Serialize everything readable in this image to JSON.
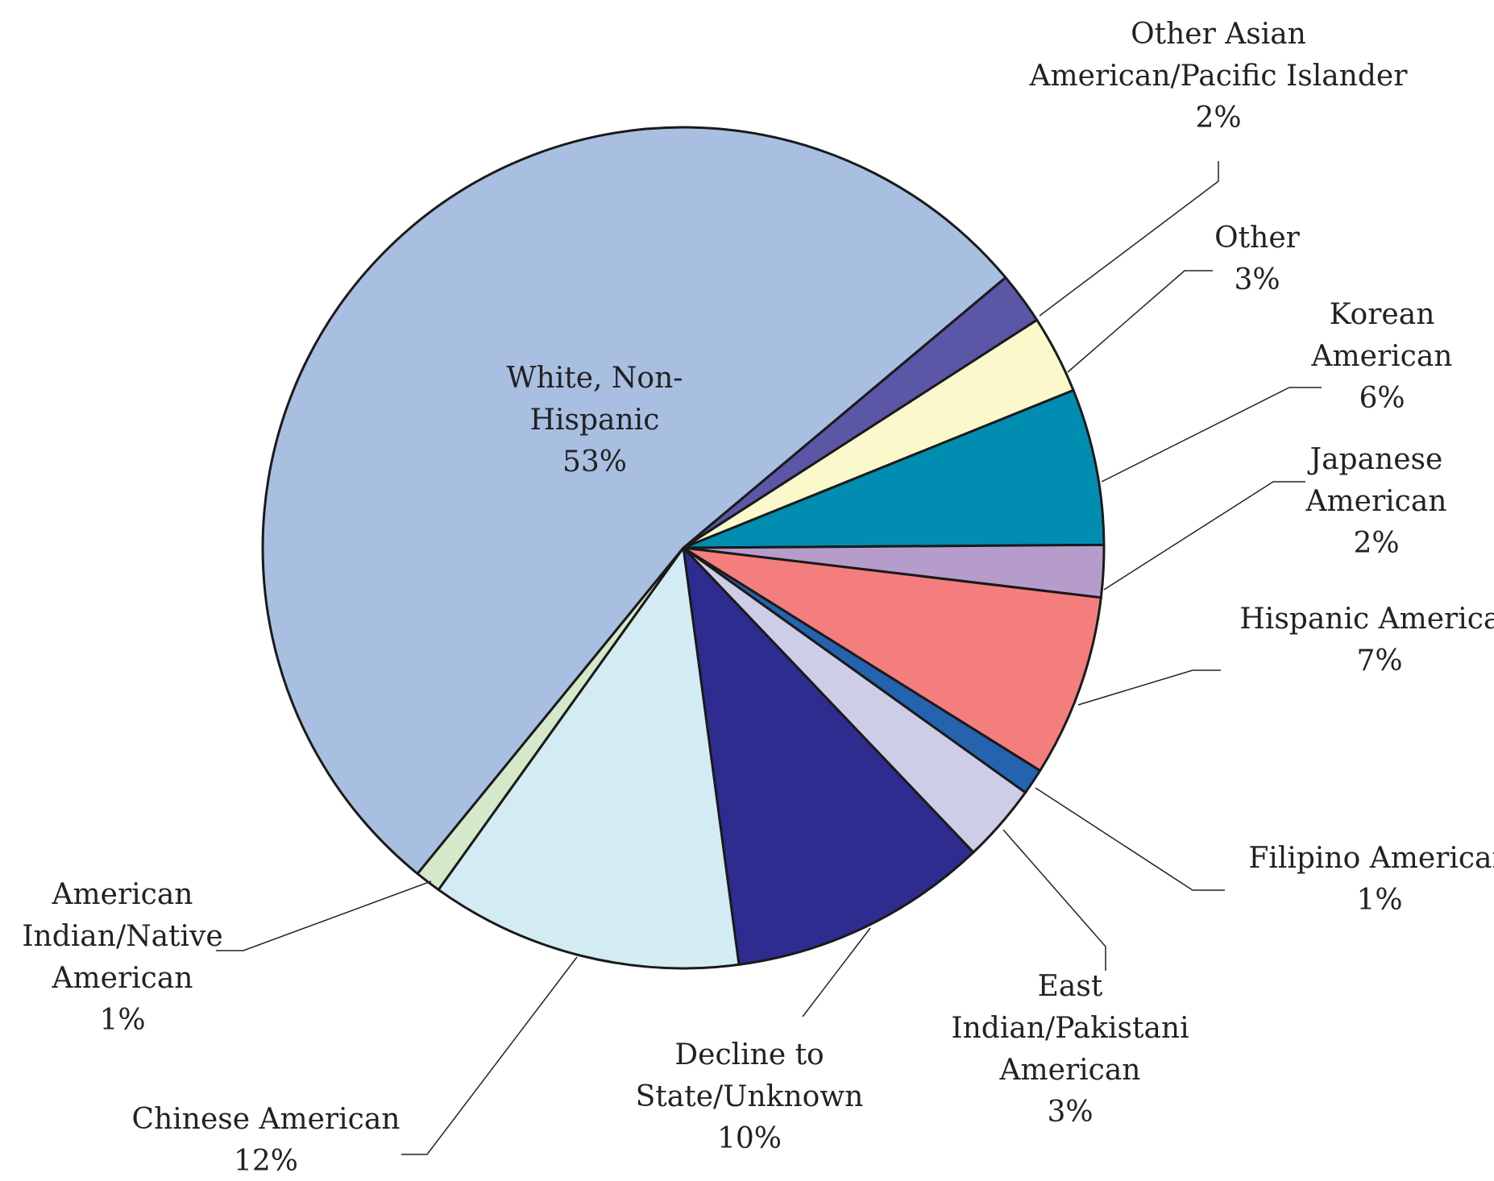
{
  "chart_data": {
    "type": "pie",
    "title": "",
    "slices": [
      {
        "label": [
          "Other Asian",
          "American/Pacific Islander"
        ],
        "value": 2,
        "value_label": "2%",
        "color": "#5B56A6"
      },
      {
        "label": [
          "Other"
        ],
        "value": 3,
        "value_label": "3%",
        "color": "#FBF8CC"
      },
      {
        "label": [
          "Korean",
          "American"
        ],
        "value": 6,
        "value_label": "6%",
        "color": "#008DB2"
      },
      {
        "label": [
          "Japanese",
          "American"
        ],
        "value": 2,
        "value_label": "2%",
        "color": "#B69CCB"
      },
      {
        "label": [
          "Hispanic American"
        ],
        "value": 7,
        "value_label": "7%",
        "color": "#F47E7E"
      },
      {
        "label": [
          "Filipino American"
        ],
        "value": 1,
        "value_label": "1%",
        "color": "#2563AE"
      },
      {
        "label": [
          "East",
          "Indian/Pakistani",
          "American"
        ],
        "value": 3,
        "value_label": "3%",
        "color": "#CECDE8"
      },
      {
        "label": [
          "Decline to",
          "State/Unknown"
        ],
        "value": 10,
        "value_label": "10%",
        "color": "#2E2C8F"
      },
      {
        "label": [
          "Chinese American"
        ],
        "value": 12,
        "value_label": "12%",
        "color": "#D3ECF4"
      },
      {
        "label": [
          "American",
          "Indian/Native",
          "American"
        ],
        "value": 1,
        "value_label": "1%",
        "color": "#D5E8C9"
      },
      {
        "label": [
          "White, Non-",
          "Hispanic"
        ],
        "value": 53,
        "value_label": "53%",
        "color": "#A8BFE1"
      }
    ]
  }
}
